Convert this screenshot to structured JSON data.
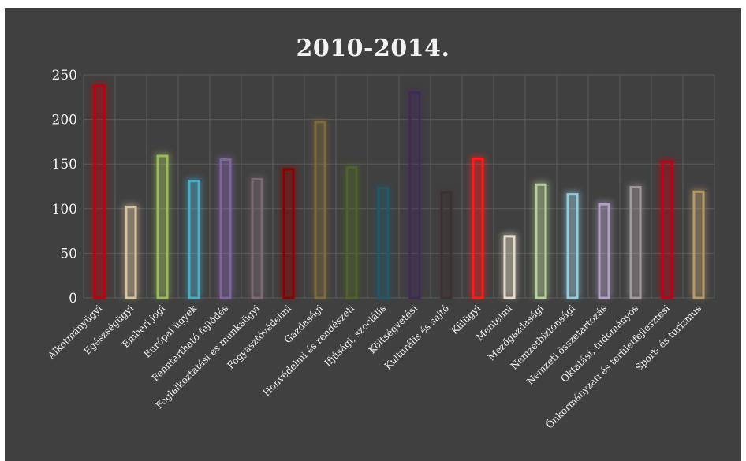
{
  "chart_data": {
    "type": "bar",
    "title": "2010-2014.",
    "xlabel": "",
    "ylabel": "",
    "ylim": [
      0,
      250
    ],
    "yticks": [
      0,
      50,
      100,
      150,
      200,
      250
    ],
    "grid": true,
    "legend": "none",
    "categories": [
      "Alkotmányügyi",
      "Egészségügyi",
      "Emberi jogi",
      "Európai ügyek",
      "Fenntartható fejlődés",
      "Foglalkoztatási és munkaügyi",
      "Fogyasztóvédelmi",
      "Gazdasági",
      "Honvédelmi és rendészeti",
      "Ifjúsági, szociális",
      "Költségvetési",
      "Kulturális és sajtó",
      "Külügyi",
      "Mentelmi",
      "Mezőgazdasági",
      "Nemzetbiztonsági",
      "Nemzeti összetartozás",
      "Oktatási, tudományos",
      "Önkormányzati és területfejlesztési",
      "Sport- és turizmus"
    ],
    "values": [
      238,
      102,
      159,
      131,
      155,
      133,
      144,
      197,
      146,
      123,
      230,
      118,
      156,
      69,
      127,
      116,
      105,
      124,
      153,
      119
    ],
    "colors": [
      "#c0000c",
      "#d9c3a0",
      "#9bbb59",
      "#4bacc6",
      "#8064a2",
      "#7b6a73",
      "#8b0000",
      "#7f6a3c",
      "#4f6228",
      "#215968",
      "#3f2b56",
      "#3d3233",
      "#ff1a1a",
      "#e6dccb",
      "#b7d19b",
      "#92cddc",
      "#b2a1c7",
      "#a29a9c",
      "#c00018",
      "#b49a6a"
    ]
  }
}
